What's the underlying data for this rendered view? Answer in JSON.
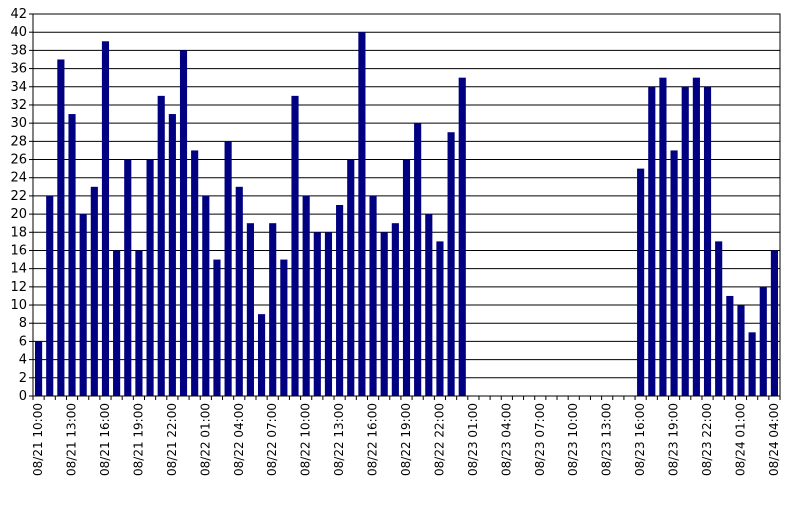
{
  "chart_data": {
    "type": "bar",
    "bar_color": "#000080",
    "axis_color": "#000000",
    "grid": true,
    "ylim": [
      0,
      42
    ],
    "y_ticks": [
      0,
      2,
      4,
      6,
      8,
      10,
      12,
      14,
      16,
      18,
      20,
      22,
      24,
      26,
      28,
      30,
      32,
      34,
      36,
      38,
      40,
      42
    ],
    "x_tick_labels": [
      "08/21 10:00",
      "08/21 13:00",
      "08/21 16:00",
      "08/21 19:00",
      "08/21 22:00",
      "08/22 01:00",
      "08/22 04:00",
      "08/22 07:00",
      "08/22 10:00",
      "08/22 13:00",
      "08/22 16:00",
      "08/22 19:00",
      "08/22 22:00",
      "08/23 01:00",
      "08/23 04:00",
      "08/23 07:00",
      "08/23 10:00",
      "08/23 13:00",
      "08/23 16:00",
      "08/23 19:00",
      "08/23 22:00",
      "08/24 01:00",
      "08/24 04:00"
    ],
    "categories": [
      "08/21 10:00",
      "08/21 11:00",
      "08/21 12:00",
      "08/21 13:00",
      "08/21 14:00",
      "08/21 15:00",
      "08/21 16:00",
      "08/21 17:00",
      "08/21 18:00",
      "08/21 19:00",
      "08/21 20:00",
      "08/21 21:00",
      "08/21 22:00",
      "08/21 23:00",
      "08/22 00:00",
      "08/22 01:00",
      "08/22 02:00",
      "08/22 03:00",
      "08/22 04:00",
      "08/22 05:00",
      "08/22 06:00",
      "08/22 07:00",
      "08/22 08:00",
      "08/22 09:00",
      "08/22 10:00",
      "08/22 11:00",
      "08/22 12:00",
      "08/22 13:00",
      "08/22 14:00",
      "08/22 15:00",
      "08/22 16:00",
      "08/22 17:00",
      "08/22 18:00",
      "08/22 19:00",
      "08/22 20:00",
      "08/22 21:00",
      "08/22 22:00",
      "08/22 23:00",
      "08/23 00:00",
      "08/23 01:00",
      "08/23 02:00",
      "08/23 03:00",
      "08/23 04:00",
      "08/23 05:00",
      "08/23 06:00",
      "08/23 07:00",
      "08/23 08:00",
      "08/23 09:00",
      "08/23 10:00",
      "08/23 11:00",
      "08/23 12:00",
      "08/23 13:00",
      "08/23 14:00",
      "08/23 15:00",
      "08/23 16:00",
      "08/23 17:00",
      "08/23 18:00",
      "08/23 19:00",
      "08/23 20:00",
      "08/23 21:00",
      "08/23 22:00",
      "08/23 23:00",
      "08/24 00:00",
      "08/24 01:00",
      "08/24 02:00",
      "08/24 03:00",
      "08/24 04:00"
    ],
    "values": [
      6,
      22,
      37,
      31,
      20,
      23,
      39,
      16,
      26,
      16,
      26,
      33,
      31,
      38,
      27,
      22,
      15,
      28,
      23,
      19,
      9,
      19,
      15,
      33,
      22,
      18,
      18,
      21,
      26,
      40,
      22,
      18,
      19,
      26,
      30,
      20,
      17,
      29,
      35,
      null,
      null,
      null,
      null,
      null,
      null,
      null,
      null,
      null,
      null,
      null,
      null,
      null,
      null,
      null,
      25,
      34,
      35,
      27,
      34,
      35,
      34,
      17,
      11,
      10,
      7,
      12,
      16
    ]
  }
}
